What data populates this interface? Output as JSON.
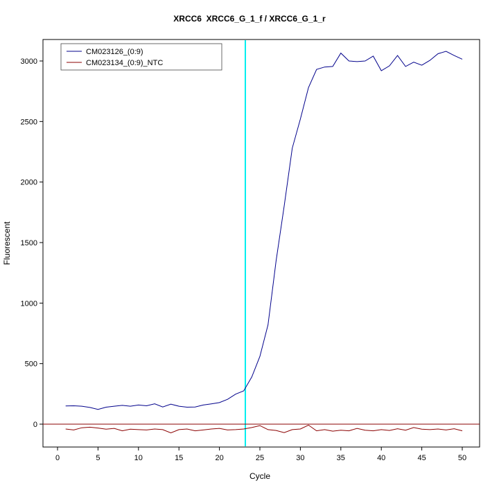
{
  "chart_data": {
    "type": "line",
    "title": "XRCC6  XRCC6_G_1_f / XRCC6_G_1_r",
    "xlabel": "Cycle",
    "ylabel": "Fluorescent",
    "xlim": [
      0,
      50
    ],
    "ylim": [
      -100,
      3100
    ],
    "x_ticks": [
      0,
      5,
      10,
      15,
      20,
      25,
      30,
      35,
      40,
      45,
      50
    ],
    "y_ticks": [
      0,
      500,
      1000,
      1500,
      2000,
      2500,
      3000
    ],
    "grid": false,
    "legend_position": "top-left",
    "ct_line_x": 23.2,
    "threshold_line_y": 0,
    "colors": {
      "sample": "#00008B",
      "ntc": "#8B0000",
      "ct_line": "#00EEEE",
      "threshold": "#8B0000"
    },
    "x": [
      1,
      2,
      3,
      4,
      5,
      6,
      7,
      8,
      9,
      10,
      11,
      12,
      13,
      14,
      15,
      16,
      17,
      18,
      19,
      20,
      21,
      22,
      23,
      24,
      25,
      26,
      27,
      28,
      29,
      30,
      31,
      32,
      33,
      34,
      35,
      36,
      37,
      38,
      39,
      40,
      41,
      42,
      43,
      44,
      45,
      46,
      47,
      48,
      49,
      50
    ],
    "series": [
      {
        "name": "CM023126_(0:9)",
        "color": "#00008B",
        "values": [
          150,
          152,
          148,
          138,
          122,
          140,
          148,
          155,
          148,
          158,
          152,
          168,
          142,
          165,
          148,
          140,
          142,
          158,
          168,
          178,
          205,
          248,
          275,
          390,
          560,
          820,
          1350,
          1800,
          2280,
          2520,
          2780,
          2930,
          2950,
          2955,
          3065,
          3000,
          2995,
          3000,
          3040,
          2920,
          2960,
          3045,
          2955,
          2990,
          2965,
          3005,
          3060,
          3080,
          3045,
          3015
        ]
      },
      {
        "name": "CM023134_(0:9)_NTC",
        "color": "#8B0000",
        "values": [
          -40,
          -48,
          -30,
          -25,
          -32,
          -42,
          -35,
          -55,
          -42,
          -45,
          -48,
          -40,
          -45,
          -72,
          -45,
          -40,
          -55,
          -48,
          -40,
          -35,
          -48,
          -45,
          -40,
          -28,
          -12,
          -45,
          -52,
          -70,
          -45,
          -40,
          -8,
          -55,
          -45,
          -58,
          -50,
          -55,
          -35,
          -50,
          -55,
          -45,
          -52,
          -38,
          -50,
          -28,
          -42,
          -45,
          -40,
          -48,
          -38,
          -55
        ]
      }
    ]
  }
}
